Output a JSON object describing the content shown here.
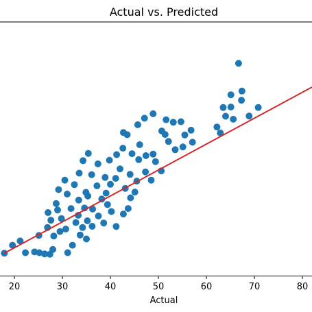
{
  "chart_data": {
    "type": "scatter",
    "title": "Actual vs. Predicted",
    "xlabel": "Actual",
    "ylabel": "",
    "xlim": [
      17,
      82
    ],
    "ylim": [
      -2.9,
      98.8
    ],
    "xticks": [
      20,
      30,
      40,
      50,
      60,
      70,
      80
    ],
    "grid": false,
    "series": [
      {
        "kind": "points",
        "color": "#1f77b4",
        "points": [
          [
            17.9,
            6.1
          ],
          [
            19.6,
            9.3
          ],
          [
            21.2,
            11.0
          ],
          [
            22.3,
            6.3
          ],
          [
            24.2,
            6.6
          ],
          [
            25.2,
            6.3
          ],
          [
            25.1,
            13.2
          ],
          [
            26.3,
            5.8
          ],
          [
            26.9,
            16.4
          ],
          [
            27.4,
            5.7
          ],
          [
            28.0,
            7.6
          ],
          [
            28.2,
            13.0
          ],
          [
            27.0,
            22.4
          ],
          [
            27.6,
            19.3
          ],
          [
            28.7,
            26.0
          ],
          [
            29.0,
            23.4
          ],
          [
            29.5,
            14.8
          ],
          [
            29.2,
            31.6
          ],
          [
            31.1,
            6.3
          ],
          [
            32.1,
            9.3
          ],
          [
            33.7,
            13.4
          ],
          [
            34.2,
            16.4
          ],
          [
            35.0,
            11.8
          ],
          [
            36.2,
            16.9
          ],
          [
            35.3,
            29.0
          ],
          [
            37.5,
            21.0
          ],
          [
            38.6,
            18.2
          ],
          [
            39.4,
            25.6
          ],
          [
            40.2,
            22.8
          ],
          [
            41.2,
            16.8
          ],
          [
            42.7,
            21.8
          ],
          [
            43.7,
            24.0
          ],
          [
            40.0,
            33.7
          ],
          [
            41.1,
            36.1
          ],
          [
            42.0,
            39.9
          ],
          [
            43.1,
            32.1
          ],
          [
            44.1,
            37.7
          ],
          [
            45.1,
            30.6
          ],
          [
            45.9,
            43.6
          ],
          [
            47.3,
            38.7
          ],
          [
            48.5,
            35.4
          ],
          [
            49.4,
            42.8
          ],
          [
            48.9,
            45.8
          ],
          [
            50.6,
            39.1
          ],
          [
            52.1,
            50.9
          ],
          [
            51.4,
            53.7
          ],
          [
            53.5,
            47.6
          ],
          [
            55.1,
            48.7
          ],
          [
            53.1,
            58.6
          ],
          [
            54.7,
            58.8
          ],
          [
            47.1,
            60.2
          ],
          [
            43.5,
            53.6
          ],
          [
            56.8,
            55.4
          ],
          [
            57.1,
            50.6
          ],
          [
            55.5,
            53.5
          ],
          [
            42.7,
            54.5
          ],
          [
            45.7,
            57.6
          ],
          [
            48.9,
            62.0
          ],
          [
            50.7,
            55.1
          ],
          [
            51.6,
            59.6
          ],
          [
            62.2,
            56.7
          ],
          [
            62.9,
            54.3
          ],
          [
            64.0,
            61.0
          ],
          [
            63.5,
            64.5
          ],
          [
            65.1,
            64.7
          ],
          [
            65.6,
            59.8
          ],
          [
            65.1,
            69.6
          ],
          [
            67.3,
            67.4
          ],
          [
            67.4,
            71.1
          ],
          [
            68.9,
            61.1
          ],
          [
            70.8,
            64.5
          ],
          [
            66.7,
            82.2
          ],
          [
            31.8,
            24.0
          ],
          [
            33.4,
            27.4
          ],
          [
            34.9,
            30.5
          ],
          [
            36.3,
            23.8
          ],
          [
            37.2,
            33.1
          ],
          [
            38.2,
            27.8
          ],
          [
            39.1,
            30.2
          ],
          [
            36.1,
            37.6
          ],
          [
            37.4,
            41.9
          ],
          [
            38.9,
            36.5
          ],
          [
            39.8,
            43.4
          ],
          [
            41.3,
            45.6
          ],
          [
            42.6,
            48.2
          ],
          [
            44.5,
            46.0
          ],
          [
            46.1,
            49.6
          ],
          [
            47.4,
            45.2
          ],
          [
            45.5,
            35.0
          ],
          [
            44.2,
            28.3
          ],
          [
            32.5,
            33.6
          ],
          [
            33.5,
            38.2
          ],
          [
            34.3,
            43.2
          ],
          [
            35.4,
            46.1
          ],
          [
            30.5,
            35.4
          ],
          [
            31.0,
            29.8
          ],
          [
            29.8,
            20.0
          ],
          [
            30.7,
            15.8
          ],
          [
            32.8,
            18.4
          ],
          [
            33.3,
            21.3
          ],
          [
            35.2,
            19.1
          ],
          [
            34.6,
            24.2
          ]
        ]
      },
      {
        "kind": "line",
        "color": "#d62728",
        "points": [
          [
            17.9,
            6.1
          ],
          [
            82.0,
            72.7
          ]
        ]
      }
    ]
  }
}
